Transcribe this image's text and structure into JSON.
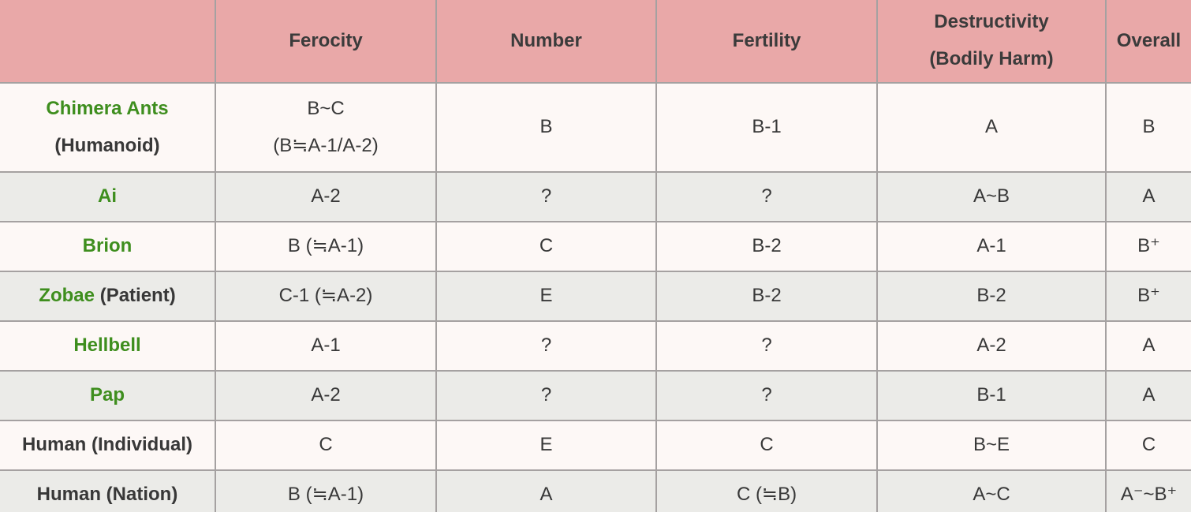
{
  "chart_data": {
    "type": "table",
    "title": "",
    "columns": [
      {
        "key": "species",
        "lines": [
          ""
        ]
      },
      {
        "key": "ferocity",
        "lines": [
          "Ferocity"
        ]
      },
      {
        "key": "number",
        "lines": [
          "Number"
        ]
      },
      {
        "key": "fertility",
        "lines": [
          "Fertility"
        ]
      },
      {
        "key": "destructivity",
        "lines": [
          "Destructivity",
          "(Bodily Harm)"
        ]
      },
      {
        "key": "overall",
        "lines": [
          "Overall"
        ]
      }
    ],
    "rows": [
      {
        "name": [
          {
            "text": "Chimera Ants",
            "color": "green"
          },
          {
            "text": "(Humanoid)",
            "color": "dark"
          }
        ],
        "name_stacked": true,
        "ferocity": [
          "B~C",
          "(B≒A-1/A-2)"
        ],
        "number": "B",
        "fertility": "B-1",
        "destructivity": "A",
        "overall": "B"
      },
      {
        "name": [
          {
            "text": "Ai",
            "color": "green"
          }
        ],
        "name_stacked": false,
        "ferocity": [
          "A-2"
        ],
        "number": "?",
        "fertility": "?",
        "destructivity": "A~B",
        "overall": "A"
      },
      {
        "name": [
          {
            "text": "Brion",
            "color": "green"
          }
        ],
        "name_stacked": false,
        "ferocity": [
          "B (≒A-1)"
        ],
        "number": "C",
        "fertility": "B-2",
        "destructivity": "A-1",
        "overall": "B⁺"
      },
      {
        "name": [
          {
            "text": "Zobae",
            "color": "green"
          },
          {
            "text": "(Patient)",
            "color": "dark"
          }
        ],
        "name_stacked": false,
        "ferocity": [
          "C-1 (≒A-2)"
        ],
        "number": "E",
        "fertility": "B-2",
        "destructivity": "B-2",
        "overall": "B⁺"
      },
      {
        "name": [
          {
            "text": "Hellbell",
            "color": "green"
          }
        ],
        "name_stacked": false,
        "ferocity": [
          "A-1"
        ],
        "number": "?",
        "fertility": "?",
        "destructivity": "A-2",
        "overall": "A"
      },
      {
        "name": [
          {
            "text": "Pap",
            "color": "green"
          }
        ],
        "name_stacked": false,
        "ferocity": [
          "A-2"
        ],
        "number": "?",
        "fertility": "?",
        "destructivity": "B-1",
        "overall": "A"
      },
      {
        "name": [
          {
            "text": "Human (Individual)",
            "color": "dark"
          }
        ],
        "name_stacked": false,
        "ferocity": [
          "C"
        ],
        "number": "E",
        "fertility": "C",
        "destructivity": "B~E",
        "overall": "C"
      },
      {
        "name": [
          {
            "text": "Human (Nation)",
            "color": "dark"
          }
        ],
        "name_stacked": false,
        "ferocity": [
          "B (≒A-1)"
        ],
        "number": "A",
        "fertility": "C (≒B)",
        "destructivity": "A~C",
        "overall": "A⁻~B⁺"
      }
    ]
  },
  "colors": {
    "header_bg": "#e9a8a8",
    "row_light": "#fdf8f6",
    "row_alt": "#ebebe8",
    "border": "#a5a1a1",
    "text": "#383838",
    "link_green": "#3e8e1e"
  }
}
